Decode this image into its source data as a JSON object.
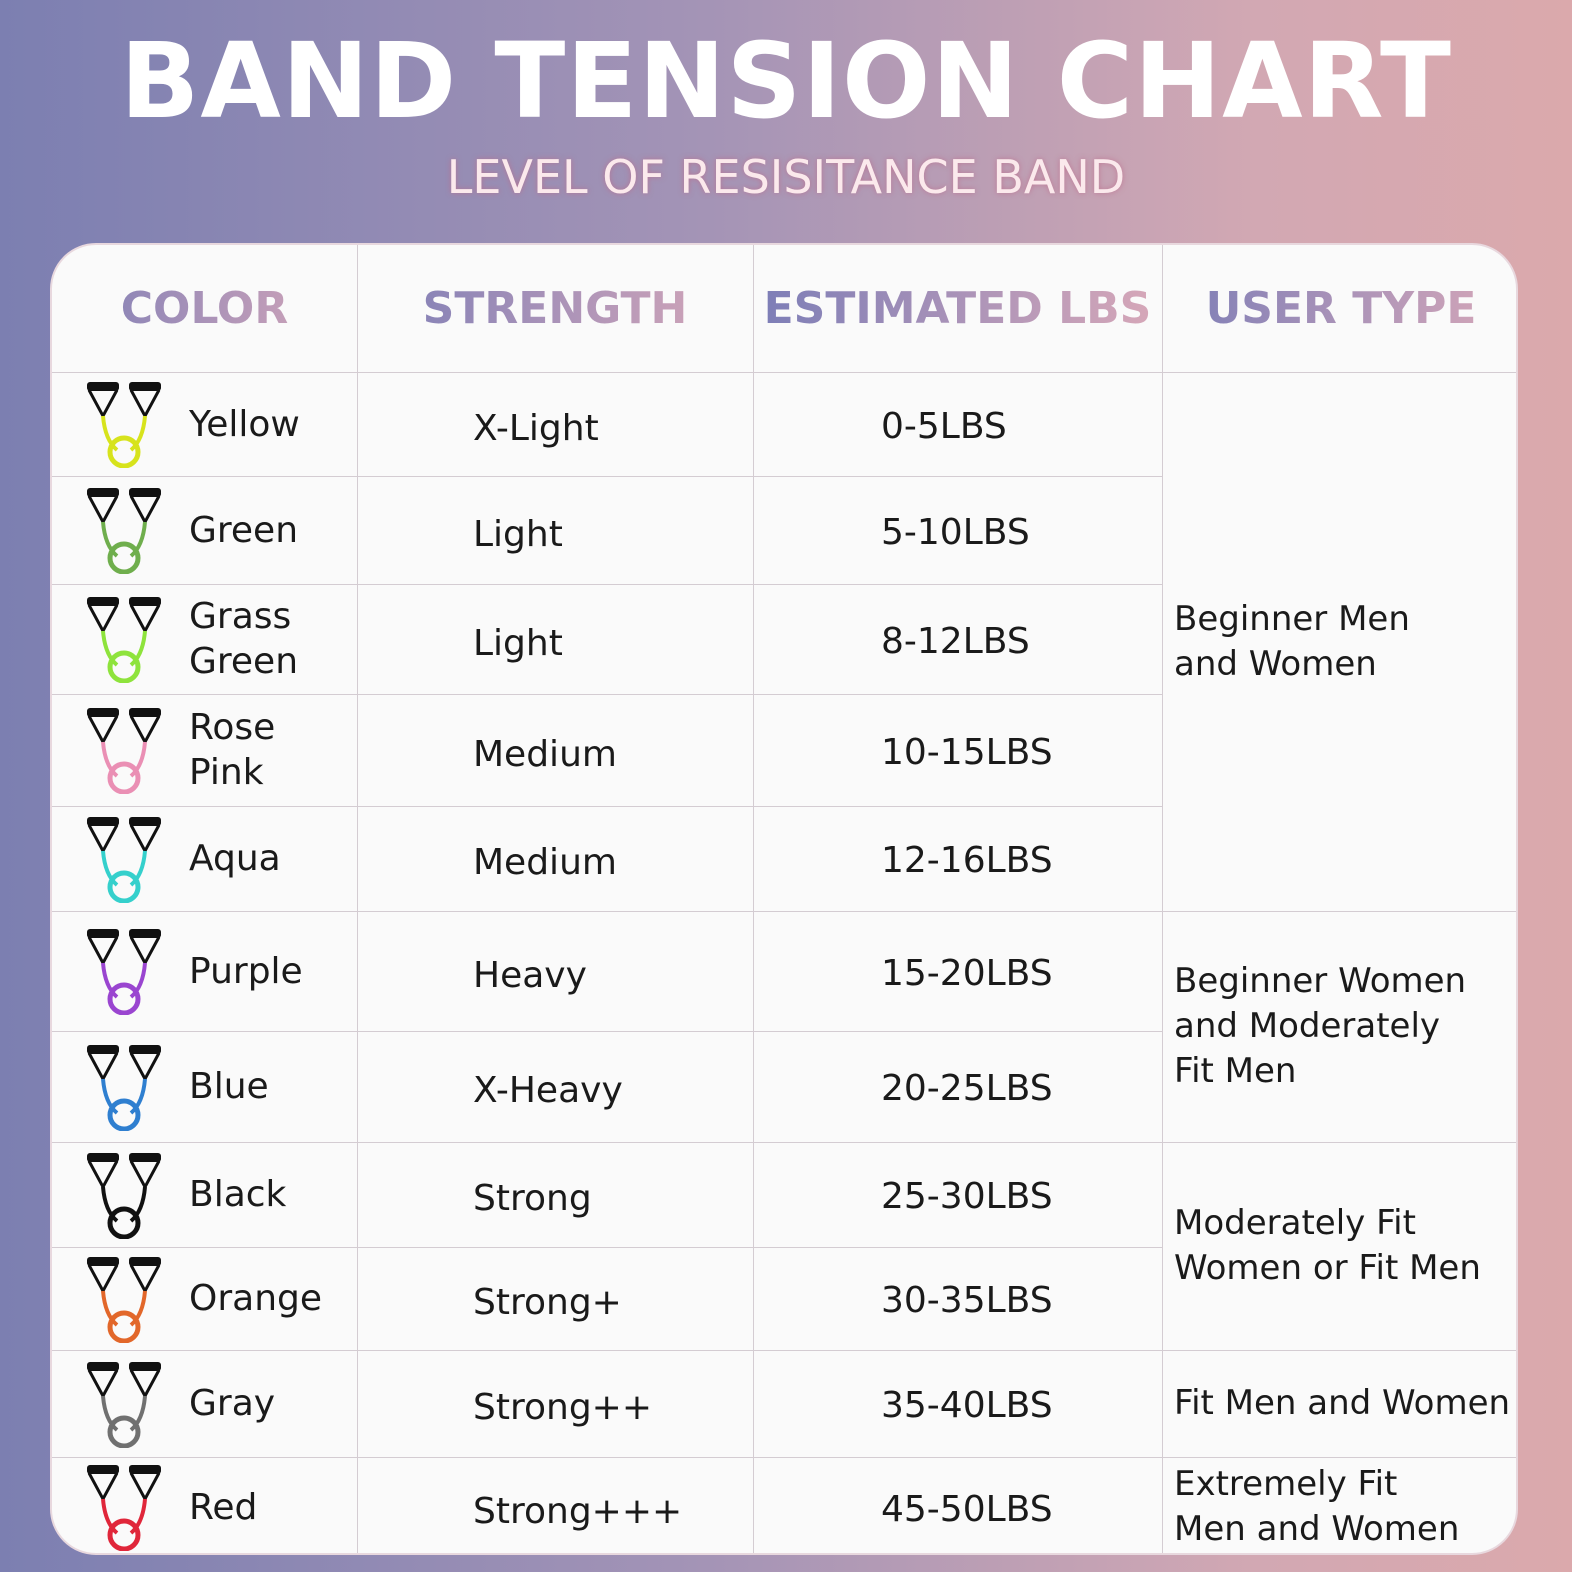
{
  "header": {
    "title": "Band Tension Chart",
    "subtitle": "LEVEL OF RESISITANCE BAND"
  },
  "table": {
    "columns": [
      "COLOR",
      "STRENGTH",
      "ESTIMATED LBS",
      "USER TYPE"
    ],
    "rows": [
      [
        "Yellow",
        "X-Light",
        "0-5LBS"
      ],
      [
        "Green",
        "Light",
        "5-10LBS"
      ],
      [
        "Grass Green",
        "Light",
        "8-12LBS"
      ],
      [
        "Rose Pink",
        "Medium",
        "10-15LBS"
      ],
      [
        "Aqua",
        "Medium",
        "12-16LBS"
      ],
      [
        "Purple",
        "Heavy",
        "15-20LBS"
      ],
      [
        "Blue",
        "X-Heavy",
        "20-25LBS"
      ],
      [
        "Black",
        "Strong",
        "25-30LBS"
      ],
      [
        "Orange",
        "Strong+",
        "30-35LBS"
      ],
      [
        "Gray",
        "Strong++",
        "35-40LBS"
      ],
      [
        "Red",
        "Strong+++",
        "45-50LBS"
      ]
    ],
    "user_types": [
      "Beginner Men and Women",
      "Beginner Women and Moderately Fit Men",
      "Moderately Fit Women or Fit Men",
      "Fit Men and Women",
      "Extremely Fit Men and Women"
    ]
  }
}
